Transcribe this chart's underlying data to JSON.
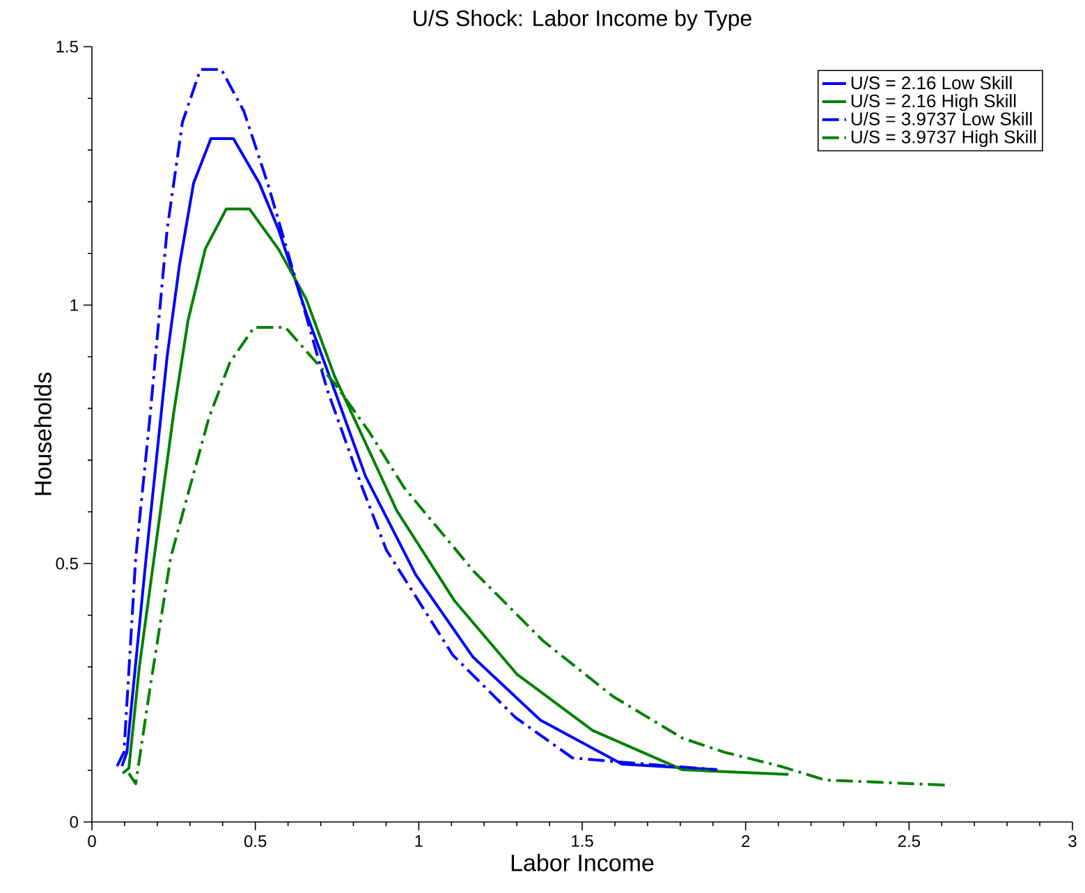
{
  "chart_data": {
    "type": "line",
    "title": "U/S Shock: Labor Income by Type",
    "xlabel": "Labor Income",
    "ylabel": "Households",
    "xlim": [
      0,
      3
    ],
    "ylim": [
      0,
      1.5
    ],
    "xticks": [
      0,
      0.5,
      1,
      1.5,
      2,
      2.5,
      3
    ],
    "yticks": [
      0,
      0.5,
      1,
      1.5
    ],
    "legend": "top right",
    "grid": false,
    "series": [
      {
        "name": "U/S = 2.16 Low Skill",
        "color": "#0000ff",
        "line_style": "solid",
        "x": [
          0.092,
          0.107,
          0.166,
          0.23,
          0.268,
          0.311,
          0.364,
          0.433,
          0.512,
          0.571,
          0.656,
          0.742,
          0.837,
          0.991,
          1.166,
          1.372,
          1.622,
          1.913
        ],
        "values": [
          0.108,
          0.135,
          0.512,
          0.9,
          1.078,
          1.236,
          1.322,
          1.322,
          1.236,
          1.146,
          0.984,
          0.836,
          0.669,
          0.478,
          0.319,
          0.197,
          0.112,
          0.101
        ]
      },
      {
        "name": "U/S = 2.16 High Skill",
        "color": "#008000",
        "line_style": "solid",
        "x": [
          0.094,
          0.113,
          0.145,
          0.251,
          0.294,
          0.347,
          0.411,
          0.482,
          0.571,
          0.656,
          0.742,
          0.933,
          1.108,
          1.3,
          1.532,
          1.807,
          2.131
        ],
        "values": [
          0.094,
          0.104,
          0.3,
          0.795,
          0.97,
          1.109,
          1.186,
          1.186,
          1.108,
          1.011,
          0.863,
          0.602,
          0.429,
          0.286,
          0.177,
          0.101,
          0.092
        ]
      },
      {
        "name": "U/S = 3.9737 Low Skill",
        "color": "#0000ff",
        "line_style": "dashed",
        "x": [
          0.077,
          0.098,
          0.134,
          0.177,
          0.23,
          0.277,
          0.332,
          0.396,
          0.465,
          0.539,
          0.635,
          0.72,
          0.827,
          0.901,
          1.104,
          1.296,
          1.47,
          1.636,
          1.913
        ],
        "values": [
          0.108,
          0.135,
          0.512,
          0.78,
          1.146,
          1.354,
          1.456,
          1.456,
          1.375,
          1.233,
          1.024,
          0.836,
          0.647,
          0.526,
          0.323,
          0.202,
          0.124,
          0.115,
          0.101
        ]
      },
      {
        "name": "U/S = 3.9737 High Skill",
        "color": "#008000",
        "line_style": "dashed",
        "x": [
          0.113,
          0.134,
          0.177,
          0.241,
          0.305,
          0.358,
          0.422,
          0.496,
          0.592,
          0.667,
          0.742,
          0.848,
          0.955,
          1.168,
          1.381,
          1.594,
          1.807,
          1.935,
          2.105,
          2.244,
          2.627
        ],
        "values": [
          0.094,
          0.074,
          0.256,
          0.512,
          0.66,
          0.782,
          0.889,
          0.957,
          0.957,
          0.903,
          0.849,
          0.755,
          0.647,
          0.485,
          0.35,
          0.243,
          0.162,
          0.135,
          0.108,
          0.081,
          0.071
        ]
      }
    ]
  }
}
